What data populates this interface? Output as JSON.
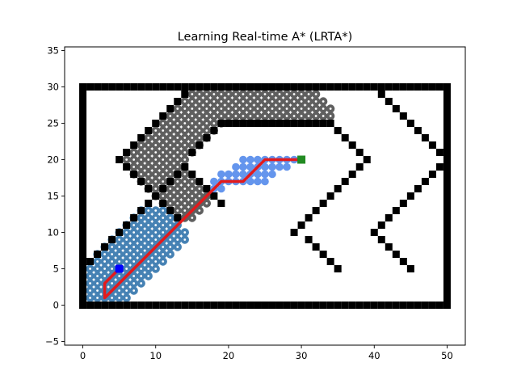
{
  "chart_data": {
    "type": "scatter",
    "title": "Learning Real-time A* (LRTA*)",
    "xlabel": "",
    "ylabel": "",
    "xlim": [
      -2.5,
      52.5
    ],
    "ylim": [
      -5.5,
      35.5
    ],
    "xticks": [
      0,
      10,
      20,
      30,
      40,
      50
    ],
    "yticks": [
      -5,
      0,
      5,
      10,
      15,
      20,
      25,
      30,
      35
    ],
    "grid": false,
    "colors": {
      "obstacle": "#000000",
      "closed": "#5f5f5f",
      "explored": "#4682b4",
      "open": "#6495ed",
      "closed_dot": "#ffffff",
      "explored_dot": "#ffffff",
      "path": "#e31a1c",
      "start": "#0000ff",
      "goal": "#228b22"
    },
    "series": [
      {
        "role": "obstacles",
        "segments": [
          {
            "from": [
              0,
              0
            ],
            "to": [
              50,
              0
            ],
            "step": 1
          },
          {
            "from": [
              0,
              30
            ],
            "to": [
              50,
              30
            ],
            "step": 1
          },
          {
            "from": [
              0,
              1
            ],
            "to": [
              0,
              29
            ],
            "step": 1
          },
          {
            "from": [
              50,
              1
            ],
            "to": [
              50,
              29
            ],
            "step": 1
          },
          {
            "from": [
              1,
              6
            ],
            "to": [
              14,
              19
            ],
            "step": 1
          },
          {
            "from": [
              14,
              29
            ],
            "to": [
              5,
              20
            ],
            "step": 1
          },
          {
            "from": [
              6,
              19
            ],
            "to": [
              13,
              12
            ],
            "step": 1
          },
          {
            "from": [
              20,
              25
            ],
            "to": [
              34,
              25
            ],
            "step": 1
          },
          {
            "from": [
              14,
              19
            ],
            "to": [
              19,
              14
            ],
            "step": 1
          },
          {
            "from": [
              19,
              25
            ],
            "to": [
              15,
              21
            ],
            "step": 1
          },
          {
            "from": [
              35,
              24
            ],
            "to": [
              39,
              20
            ],
            "step": 1
          },
          {
            "from": [
              38,
              19
            ],
            "to": [
              30,
              10
            ],
            "step": 1
          },
          {
            "from": [
              31,
              9
            ],
            "to": [
              35,
              5
            ],
            "step": 1
          },
          {
            "from": [
              41,
              29
            ],
            "to": [
              49,
              21
            ],
            "step": 1
          },
          {
            "from": [
              49,
              19
            ],
            "to": [
              40,
              10
            ],
            "step": 1
          },
          {
            "from": [
              41,
              9
            ],
            "to": [
              45,
              5
            ],
            "step": 1
          }
        ]
      },
      {
        "role": "closed",
        "rows": [
          {
            "y": 29,
            "x_start": 15,
            "x_end": 32
          },
          {
            "y": 28,
            "x_start": 14,
            "x_end": 33
          },
          {
            "y": 27,
            "x_start": 13,
            "x_end": 34
          },
          {
            "y": 26,
            "x_start": 12,
            "x_end": 34
          },
          {
            "y": 25,
            "x_start": 11,
            "x_end": 19
          },
          {
            "y": 24,
            "x_start": 10,
            "x_end": 18
          },
          {
            "y": 23,
            "x_start": 9,
            "x_end": 17
          },
          {
            "y": 22,
            "x_start": 8,
            "x_end": 16
          },
          {
            "y": 21,
            "x_start": 7,
            "x_end": 15
          },
          {
            "y": 20,
            "x_start": 6,
            "x_end": 14
          },
          {
            "y": 19,
            "x_start": 7,
            "x_end": 13
          },
          {
            "y": 18,
            "x_start": 7,
            "x_end": 14
          },
          {
            "y": 17,
            "x_start": 8,
            "x_end": 15
          },
          {
            "y": 16,
            "x_start": 9,
            "x_end": 16
          },
          {
            "y": 15,
            "x_start": 10,
            "x_end": 17
          },
          {
            "y": 14,
            "x_start": 11,
            "x_end": 17
          },
          {
            "y": 13,
            "x_start": 12,
            "x_end": 16
          },
          {
            "y": 12,
            "x_start": 13,
            "x_end": 15
          }
        ]
      },
      {
        "role": "explored",
        "rows": [
          {
            "y": 13,
            "x_start": 8,
            "x_end": 11
          },
          {
            "y": 12,
            "x_start": 7,
            "x_end": 12
          },
          {
            "y": 11,
            "x_start": 6,
            "x_end": 13
          },
          {
            "y": 10,
            "x_start": 5,
            "x_end": 14
          },
          {
            "y": 9,
            "x_start": 4,
            "x_end": 14
          },
          {
            "y": 8,
            "x_start": 3,
            "x_end": 13
          },
          {
            "y": 7,
            "x_start": 2,
            "x_end": 12
          },
          {
            "y": 6,
            "x_start": 2,
            "x_end": 11
          },
          {
            "y": 5,
            "x_start": 1,
            "x_end": 10
          },
          {
            "y": 4,
            "x_start": 1,
            "x_end": 9
          },
          {
            "y": 3,
            "x_start": 1,
            "x_end": 8
          },
          {
            "y": 2,
            "x_start": 1,
            "x_end": 7
          },
          {
            "y": 1,
            "x_start": 1,
            "x_end": 6
          }
        ]
      },
      {
        "role": "open",
        "points": [
          [
            22,
            20
          ],
          [
            23,
            20
          ],
          [
            24,
            20
          ],
          [
            25,
            20
          ],
          [
            26,
            20
          ],
          [
            27,
            20
          ],
          [
            28,
            20
          ],
          [
            29,
            20
          ],
          [
            21,
            19
          ],
          [
            22,
            19
          ],
          [
            23,
            19
          ],
          [
            24,
            19
          ],
          [
            25,
            19
          ],
          [
            26,
            19
          ],
          [
            27,
            19
          ],
          [
            28,
            19
          ],
          [
            19,
            18
          ],
          [
            20,
            18
          ],
          [
            21,
            18
          ],
          [
            22,
            18
          ],
          [
            23,
            18
          ],
          [
            24,
            18
          ],
          [
            25,
            18
          ],
          [
            26,
            18
          ],
          [
            18,
            17
          ],
          [
            19,
            17
          ],
          [
            20,
            17
          ],
          [
            21,
            17
          ],
          [
            22,
            17
          ],
          [
            23,
            17
          ],
          [
            24,
            17
          ],
          [
            25,
            17
          ],
          [
            18,
            16
          ],
          [
            19,
            16
          ]
        ]
      },
      {
        "role": "path",
        "points": [
          [
            5,
            5
          ],
          [
            3,
            3
          ],
          [
            3,
            1
          ],
          [
            19,
            17
          ],
          [
            22,
            17
          ],
          [
            25,
            20
          ],
          [
            30,
            20
          ]
        ]
      },
      {
        "role": "start",
        "points": [
          [
            5,
            5
          ]
        ]
      },
      {
        "role": "goal",
        "points": [
          [
            30,
            20
          ]
        ]
      }
    ]
  }
}
